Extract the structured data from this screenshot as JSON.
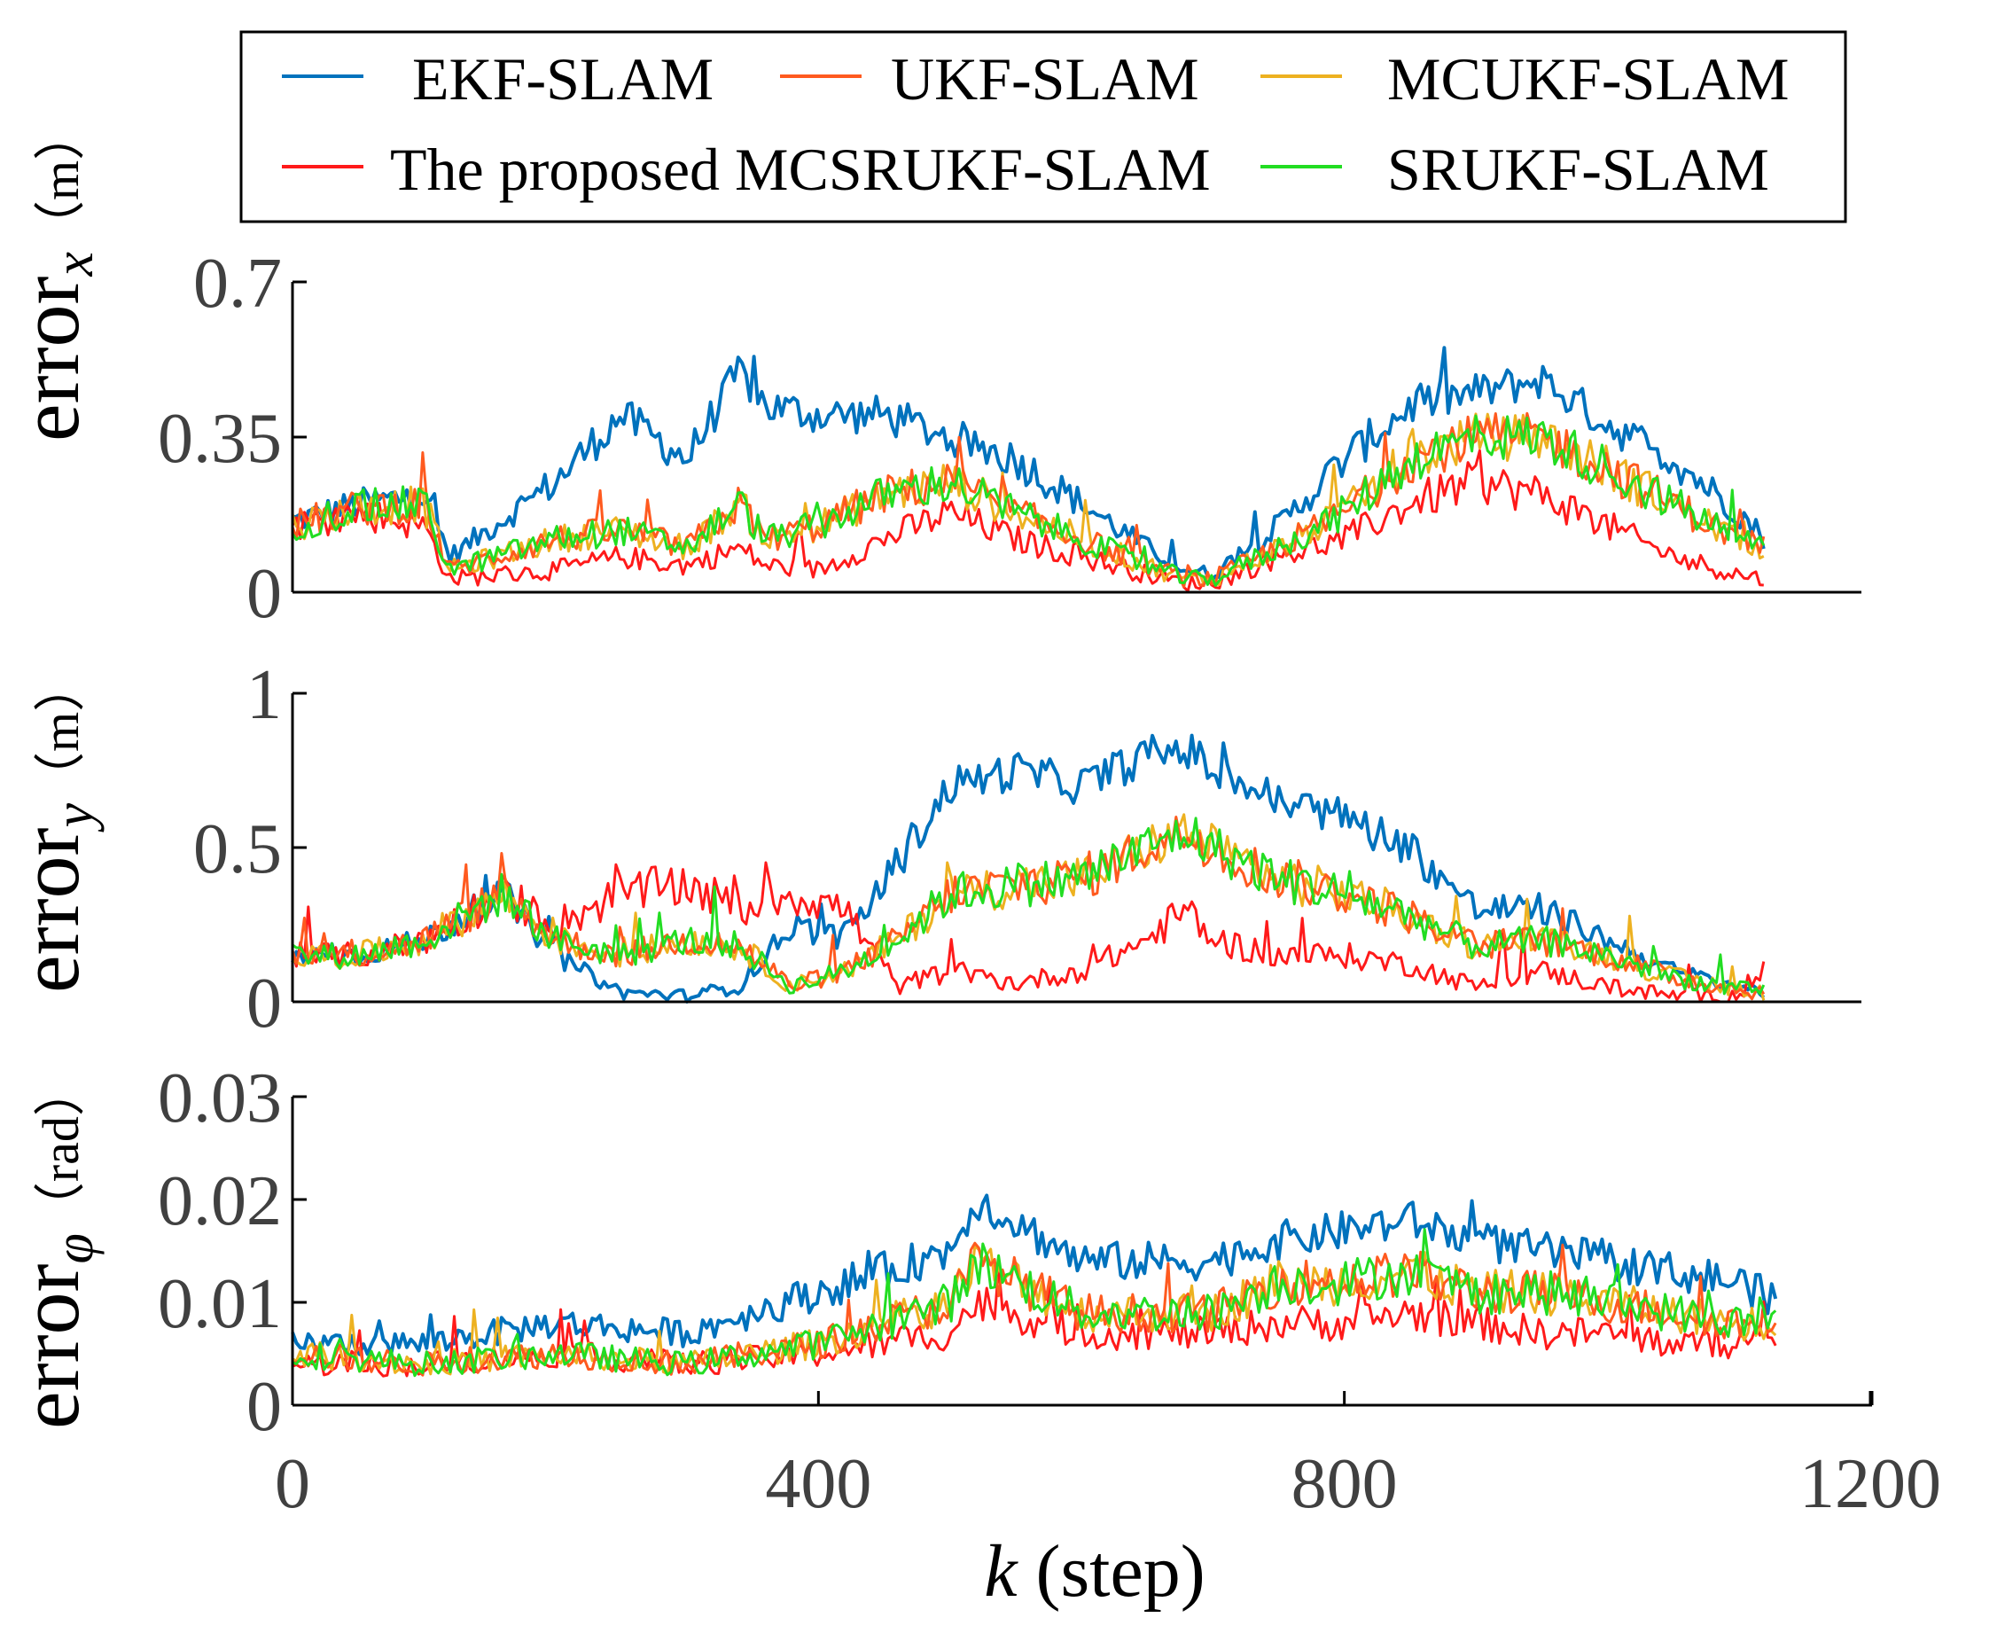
{
  "legend": {
    "entries": [
      {
        "label": "EKF-SLAM",
        "color": "#0072BD"
      },
      {
        "label": "UKF-SLAM",
        "color": "#FF5A1F"
      },
      {
        "label": "MCUKF-SLAM",
        "color": "#EDB120"
      },
      {
        "label": "The proposed MCSRUKF-SLAM",
        "color": "#FF1A1A"
      },
      {
        "label": "SRUKF-SLAM",
        "color": "#22DD22"
      }
    ]
  },
  "xaxis": {
    "label_var": "k",
    "label_rest": " (step)",
    "ticks": [
      "0",
      "400",
      "800",
      "1200"
    ]
  },
  "chart_data": [
    {
      "type": "line",
      "ylabel_base": "error",
      "ylabel_sub": "x",
      "ylabel_unit": "（m）",
      "xlim": [
        0,
        1200
      ],
      "ylim": [
        0,
        0.7
      ],
      "yticks": [
        "0",
        "0.35",
        "0.7"
      ],
      "x": [
        0,
        50,
        100,
        120,
        200,
        250,
        300,
        340,
        360,
        400,
        450,
        500,
        550,
        600,
        650,
        680,
        700,
        750,
        800,
        850,
        900,
        950,
        1000,
        1050,
        1100,
        1120
      ],
      "series": [
        {
          "name": "EKF-SLAM",
          "values": [
            0.16,
            0.2,
            0.22,
            0.08,
            0.25,
            0.4,
            0.3,
            0.5,
            0.42,
            0.4,
            0.4,
            0.35,
            0.3,
            0.2,
            0.1,
            0.05,
            0.04,
            0.15,
            0.3,
            0.42,
            0.45,
            0.48,
            0.38,
            0.3,
            0.18,
            0.12
          ]
        },
        {
          "name": "UKF-SLAM",
          "values": [
            0.15,
            0.19,
            0.2,
            0.05,
            0.12,
            0.14,
            0.1,
            0.2,
            0.12,
            0.15,
            0.22,
            0.25,
            0.18,
            0.12,
            0.06,
            0.03,
            0.03,
            0.1,
            0.18,
            0.3,
            0.35,
            0.35,
            0.28,
            0.2,
            0.12,
            0.1
          ]
        },
        {
          "name": "MCUKF-SLAM",
          "values": [
            0.15,
            0.19,
            0.2,
            0.05,
            0.12,
            0.14,
            0.1,
            0.2,
            0.12,
            0.15,
            0.22,
            0.25,
            0.18,
            0.12,
            0.06,
            0.03,
            0.03,
            0.1,
            0.18,
            0.3,
            0.35,
            0.35,
            0.28,
            0.2,
            0.12,
            0.1
          ]
        },
        {
          "name": "The proposed MCSRUKF-SLAM",
          "values": [
            0.15,
            0.18,
            0.15,
            0.03,
            0.05,
            0.08,
            0.06,
            0.1,
            0.06,
            0.05,
            0.12,
            0.18,
            0.12,
            0.08,
            0.04,
            0.02,
            0.02,
            0.08,
            0.12,
            0.2,
            0.25,
            0.22,
            0.15,
            0.08,
            0.04,
            0.03
          ]
        },
        {
          "name": "SRUKF-SLAM",
          "values": [
            0.15,
            0.19,
            0.2,
            0.05,
            0.12,
            0.14,
            0.1,
            0.2,
            0.12,
            0.15,
            0.22,
            0.25,
            0.18,
            0.12,
            0.06,
            0.03,
            0.03,
            0.1,
            0.18,
            0.3,
            0.35,
            0.35,
            0.28,
            0.2,
            0.12,
            0.1
          ]
        }
      ]
    },
    {
      "type": "line",
      "ylabel_base": "error",
      "ylabel_sub": "y",
      "ylabel_unit": "（m）",
      "xlim": [
        0,
        1200
      ],
      "ylim": [
        0,
        1
      ],
      "yticks": [
        "0",
        "0.5",
        "1"
      ],
      "x": [
        0,
        50,
        100,
        160,
        200,
        250,
        300,
        340,
        380,
        420,
        460,
        500,
        550,
        600,
        650,
        680,
        700,
        750,
        800,
        850,
        900,
        950,
        1000,
        1050,
        1100,
        1120
      ],
      "series": [
        {
          "name": "EKF-SLAM",
          "values": [
            0.15,
            0.15,
            0.2,
            0.35,
            0.15,
            0.03,
            0.02,
            0.05,
            0.25,
            0.2,
            0.45,
            0.7,
            0.75,
            0.7,
            0.8,
            0.82,
            0.75,
            0.65,
            0.6,
            0.5,
            0.3,
            0.3,
            0.2,
            0.1,
            0.05,
            0.03
          ]
        },
        {
          "name": "UKF-SLAM",
          "values": [
            0.15,
            0.15,
            0.2,
            0.35,
            0.2,
            0.15,
            0.2,
            0.18,
            0.05,
            0.1,
            0.2,
            0.35,
            0.38,
            0.4,
            0.5,
            0.55,
            0.5,
            0.4,
            0.35,
            0.28,
            0.18,
            0.2,
            0.15,
            0.08,
            0.04,
            0.03
          ]
        },
        {
          "name": "MCUKF-SLAM",
          "values": [
            0.15,
            0.15,
            0.2,
            0.35,
            0.2,
            0.15,
            0.2,
            0.18,
            0.05,
            0.1,
            0.2,
            0.35,
            0.38,
            0.4,
            0.5,
            0.55,
            0.5,
            0.4,
            0.35,
            0.28,
            0.18,
            0.2,
            0.15,
            0.08,
            0.04,
            0.03
          ]
        },
        {
          "name": "The proposed MCSRUKF-SLAM",
          "values": [
            0.15,
            0.15,
            0.2,
            0.35,
            0.25,
            0.35,
            0.38,
            0.3,
            0.35,
            0.3,
            0.05,
            0.1,
            0.06,
            0.1,
            0.2,
            0.3,
            0.2,
            0.15,
            0.15,
            0.12,
            0.05,
            0.1,
            0.05,
            0.02,
            0.02,
            0.1
          ]
        },
        {
          "name": "SRUKF-SLAM",
          "values": [
            0.15,
            0.15,
            0.2,
            0.35,
            0.2,
            0.15,
            0.2,
            0.18,
            0.05,
            0.1,
            0.2,
            0.35,
            0.38,
            0.4,
            0.5,
            0.55,
            0.5,
            0.4,
            0.35,
            0.28,
            0.18,
            0.2,
            0.15,
            0.08,
            0.04,
            0.03
          ]
        }
      ]
    },
    {
      "type": "line",
      "ylabel_base": "error",
      "ylabel_sub": "φ",
      "ylabel_unit": "（rad）",
      "xlim": [
        0,
        1200
      ],
      "ylim": [
        0,
        0.03
      ],
      "yticks": [
        "0",
        "0.01",
        "0.02",
        "0.03"
      ],
      "x": [
        0,
        100,
        200,
        300,
        400,
        500,
        520,
        600,
        700,
        750,
        800,
        850,
        900,
        950,
        1000,
        1050,
        1100,
        1130
      ],
      "series": [
        {
          "name": "EKF-SLAM",
          "values": [
            0.006,
            0.006,
            0.008,
            0.007,
            0.011,
            0.015,
            0.02,
            0.014,
            0.014,
            0.016,
            0.017,
            0.018,
            0.016,
            0.015,
            0.014,
            0.013,
            0.012,
            0.01
          ]
        },
        {
          "name": "UKF-SLAM",
          "values": [
            0.005,
            0.004,
            0.005,
            0.004,
            0.006,
            0.01,
            0.014,
            0.009,
            0.009,
            0.012,
            0.012,
            0.013,
            0.011,
            0.011,
            0.01,
            0.009,
            0.008,
            0.008
          ]
        },
        {
          "name": "MCUKF-SLAM",
          "values": [
            0.005,
            0.004,
            0.005,
            0.004,
            0.006,
            0.01,
            0.014,
            0.009,
            0.009,
            0.012,
            0.012,
            0.013,
            0.011,
            0.011,
            0.01,
            0.009,
            0.008,
            0.008
          ]
        },
        {
          "name": "The proposed MCSRUKF-SLAM",
          "values": [
            0.004,
            0.004,
            0.005,
            0.004,
            0.005,
            0.007,
            0.01,
            0.007,
            0.007,
            0.008,
            0.008,
            0.009,
            0.008,
            0.007,
            0.007,
            0.006,
            0.006,
            0.006
          ]
        },
        {
          "name": "SRUKF-SLAM",
          "values": [
            0.005,
            0.004,
            0.005,
            0.004,
            0.006,
            0.01,
            0.014,
            0.009,
            0.009,
            0.012,
            0.012,
            0.013,
            0.011,
            0.011,
            0.01,
            0.009,
            0.008,
            0.008
          ]
        }
      ]
    }
  ]
}
